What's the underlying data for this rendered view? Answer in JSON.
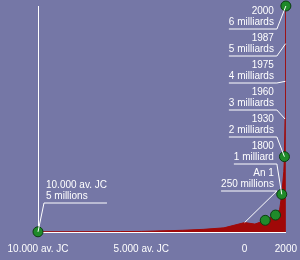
{
  "chart_data": {
    "type": "area",
    "x": [
      -10000,
      -8000,
      -6000,
      -5000,
      -4000,
      -3000,
      -2000,
      -1000,
      1,
      500,
      1000,
      1300,
      1500,
      1700,
      1800,
      1900,
      1930,
      1960,
      1975,
      1987,
      2000
    ],
    "values": [
      5,
      8,
      12,
      15,
      30,
      45,
      70,
      110,
      250,
      210,
      310,
      400,
      450,
      600,
      1000,
      1600,
      2000,
      3000,
      4000,
      5000,
      6000
    ],
    "color": "#a00808",
    "points": {
      "x": [
        -10000,
        1000,
        1500,
        1800,
        1930,
        2000
      ],
      "values": [
        5,
        310,
        450,
        1000,
        2000,
        6000
      ],
      "color": "#1f8a2a",
      "marker": "circle"
    },
    "xlim": [
      -10000,
      2000
    ],
    "xticks": [
      {
        "value": -10000,
        "label": "10.000 av. JC"
      },
      {
        "value": -5000,
        "label": "5.000 av. JC"
      },
      0,
      2000
    ],
    "ylim": [
      0,
      6000
    ],
    "tick_labels": "x",
    "grid": false,
    "annotations": [
      {
        "x": -10000,
        "y": 5,
        "text": [
          "10.000 av. JC",
          "5 millions"
        ]
      },
      {
        "x": 1,
        "y": 250,
        "text": [
          "An 1",
          "250 millions"
        ]
      },
      {
        "x": 1800,
        "y": 1000,
        "text": [
          "1800",
          "1 milliard"
        ]
      },
      {
        "x": 1930,
        "y": 2000,
        "text": [
          "1930",
          "2 milliards"
        ]
      },
      {
        "x": 1960,
        "y": 3000,
        "text": [
          "1960",
          "3 milliards"
        ]
      },
      {
        "x": 1975,
        "y": 4000,
        "text": [
          "1975",
          "4 milliards"
        ]
      },
      {
        "x": 1987,
        "y": 5000,
        "text": [
          "1987",
          "5 milliards"
        ]
      },
      {
        "x": 2000,
        "y": 6000,
        "text": [
          "2000",
          "6 milliards"
        ]
      }
    ]
  }
}
